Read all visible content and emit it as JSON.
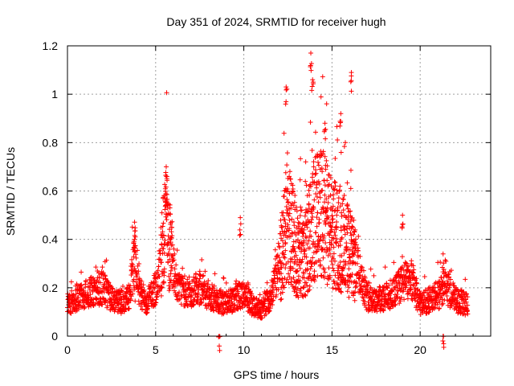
{
  "chart_data": {
    "type": "scatter",
    "title": "Day 351 of 2024, SRMTID for receiver hugh",
    "xlabel": "GPS time / hours",
    "ylabel": "SRMTID / TECUs",
    "xlim": [
      0,
      24
    ],
    "ylim": [
      0,
      1.2
    ],
    "xticks": [
      0,
      5,
      10,
      15,
      20
    ],
    "xtick_labels": [
      "0",
      "5",
      "10",
      "15",
      "20"
    ],
    "yticks": [
      0,
      0.2,
      0.4,
      0.6,
      0.8,
      1,
      1.2
    ],
    "ytick_labels": [
      "0",
      "0.2",
      "0.4",
      "0.6",
      "0.8",
      "1",
      "1.2"
    ],
    "grid": true,
    "marker": "plus",
    "series": [
      {
        "name": "SRMTID",
        "color": "#ff0000",
        "envelope": [
          {
            "x": 0.0,
            "y": 0.13
          },
          {
            "x": 0.5,
            "y": 0.16
          },
          {
            "x": 1.0,
            "y": 0.17
          },
          {
            "x": 1.5,
            "y": 0.19
          },
          {
            "x": 2.0,
            "y": 0.2
          },
          {
            "x": 2.5,
            "y": 0.15
          },
          {
            "x": 3.0,
            "y": 0.14
          },
          {
            "x": 3.5,
            "y": 0.16
          },
          {
            "x": 3.8,
            "y": 0.33
          },
          {
            "x": 4.1,
            "y": 0.18
          },
          {
            "x": 4.5,
            "y": 0.14
          },
          {
            "x": 5.0,
            "y": 0.2
          },
          {
            "x": 5.3,
            "y": 0.3
          },
          {
            "x": 5.6,
            "y": 0.5
          },
          {
            "x": 5.9,
            "y": 0.32
          },
          {
            "x": 6.3,
            "y": 0.19
          },
          {
            "x": 7.0,
            "y": 0.18
          },
          {
            "x": 7.5,
            "y": 0.2
          },
          {
            "x": 8.0,
            "y": 0.17
          },
          {
            "x": 8.5,
            "y": 0.15
          },
          {
            "x": 9.0,
            "y": 0.13
          },
          {
            "x": 9.5,
            "y": 0.16
          },
          {
            "x": 10.0,
            "y": 0.17
          },
          {
            "x": 10.5,
            "y": 0.13
          },
          {
            "x": 11.0,
            "y": 0.11
          },
          {
            "x": 11.5,
            "y": 0.16
          },
          {
            "x": 12.0,
            "y": 0.28
          },
          {
            "x": 12.5,
            "y": 0.5
          },
          {
            "x": 13.0,
            "y": 0.34
          },
          {
            "x": 13.5,
            "y": 0.35
          },
          {
            "x": 14.0,
            "y": 0.48
          },
          {
            "x": 14.5,
            "y": 0.5
          },
          {
            "x": 15.0,
            "y": 0.42
          },
          {
            "x": 15.5,
            "y": 0.4
          },
          {
            "x": 16.0,
            "y": 0.34
          },
          {
            "x": 16.5,
            "y": 0.28
          },
          {
            "x": 17.0,
            "y": 0.16
          },
          {
            "x": 17.5,
            "y": 0.15
          },
          {
            "x": 18.0,
            "y": 0.16
          },
          {
            "x": 18.5,
            "y": 0.18
          },
          {
            "x": 19.0,
            "y": 0.22
          },
          {
            "x": 19.5,
            "y": 0.24
          },
          {
            "x": 20.0,
            "y": 0.13
          },
          {
            "x": 20.5,
            "y": 0.15
          },
          {
            "x": 21.0,
            "y": 0.17
          },
          {
            "x": 21.5,
            "y": 0.2
          },
          {
            "x": 22.0,
            "y": 0.15
          },
          {
            "x": 22.7,
            "y": 0.13
          }
        ],
        "peaks": [
          {
            "x": 3.8,
            "y": 0.4
          },
          {
            "x": 5.6,
            "y": 0.7
          },
          {
            "x": 9.8,
            "y": 0.49
          },
          {
            "x": 12.4,
            "y": 1.03
          },
          {
            "x": 13.8,
            "y": 1.17
          },
          {
            "x": 13.9,
            "y": 1.06
          },
          {
            "x": 14.6,
            "y": 0.88
          },
          {
            "x": 15.5,
            "y": 0.92
          },
          {
            "x": 16.1,
            "y": 1.09
          },
          {
            "x": 19.0,
            "y": 0.5
          },
          {
            "x": 21.3,
            "y": 0.34
          },
          {
            "x": 8.6,
            "y": 0.0
          },
          {
            "x": 21.3,
            "y": 0.0
          }
        ]
      }
    ]
  }
}
